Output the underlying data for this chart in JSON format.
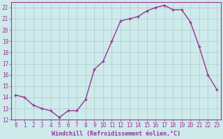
{
  "hours": [
    0,
    1,
    2,
    3,
    4,
    5,
    6,
    7,
    8,
    9,
    10,
    11,
    12,
    13,
    14,
    15,
    16,
    17,
    18,
    19,
    20,
    21,
    22,
    23
  ],
  "values": [
    14.2,
    14.0,
    13.3,
    13.0,
    12.8,
    12.2,
    12.8,
    12.8,
    13.8,
    16.5,
    17.2,
    19.0,
    20.8,
    21.0,
    21.2,
    21.7,
    22.0,
    22.2,
    21.8,
    21.8,
    20.7,
    18.5,
    16.0,
    14.7
  ],
  "line_color": "#993399",
  "marker": "+",
  "marker_size": 3,
  "marker_lw": 1.0,
  "line_width": 1.0,
  "background_color": "#ceeaea",
  "grid_color": "#aacccc",
  "xlabel": "Windchill (Refroidissement éolien,°C)",
  "xlabel_color": "#993399",
  "tick_color": "#993399",
  "spine_color": "#993399",
  "ylim": [
    12,
    22.5
  ],
  "xlim": [
    -0.5,
    23.5
  ],
  "yticks": [
    12,
    13,
    14,
    15,
    16,
    17,
    18,
    19,
    20,
    21,
    22
  ],
  "xticks": [
    0,
    1,
    2,
    3,
    4,
    5,
    6,
    7,
    8,
    9,
    10,
    11,
    12,
    13,
    14,
    15,
    16,
    17,
    18,
    19,
    20,
    21,
    22,
    23
  ],
  "tick_fontsize": 5.5,
  "xlabel_fontsize": 6.0
}
